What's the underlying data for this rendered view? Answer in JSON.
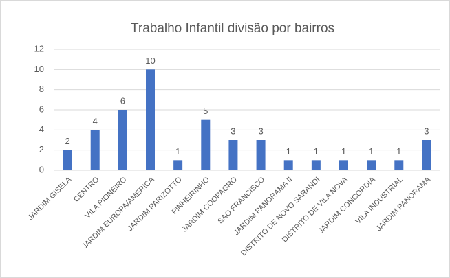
{
  "chart_data": {
    "type": "bar",
    "title": "Trabalho Infantil divisão por bairros",
    "categories": [
      "JARDIM GISELA",
      "CENTRO",
      "VILA PIONEIRO",
      "JARDIM EUROPA/AMERICA",
      "JARDIM PARIZOTTO",
      "PINHEIRINHO",
      "JARDIM COOPAGRO",
      "SAO FRANCISCO",
      "JARDIM PANORAMA II",
      "DISTRITO DE NOVO SARANDI",
      "DISTRITO DE VILA NOVA",
      "JARDIM CONCORDIA",
      "VILA INDUSTRIAL",
      "JARDIM PANORAMA"
    ],
    "values": [
      2,
      4,
      6,
      10,
      1,
      5,
      3,
      3,
      1,
      1,
      1,
      1,
      1,
      3
    ],
    "color": "#4472c4",
    "ylim": [
      0,
      12
    ],
    "yticks": [
      0,
      2,
      4,
      6,
      8,
      10,
      12
    ],
    "grid": true,
    "data_labels": true
  }
}
